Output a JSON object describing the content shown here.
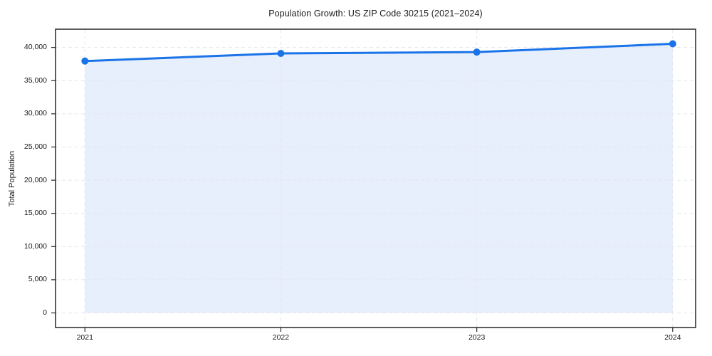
{
  "chart_data": {
    "type": "area",
    "title": "Population Growth: US ZIP Code 30215 (2021–2024)",
    "xlabel": "",
    "ylabel": "Total Population",
    "x": [
      2021,
      2022,
      2023,
      2024
    ],
    "series": [
      {
        "name": "Total Population",
        "values": [
          37950,
          39100,
          39300,
          40550
        ]
      }
    ],
    "xlim": [
      2020.85,
      2024.117
    ],
    "ylim": [
      -2200,
      42750
    ],
    "fill_baseline": 0,
    "yticks": [
      0,
      5000,
      10000,
      15000,
      20000,
      25000,
      30000,
      35000,
      40000
    ],
    "ytick_labels": [
      "0",
      "5,000",
      "10,000",
      "15,000",
      "20,000",
      "25,000",
      "30,000",
      "35,000",
      "40,000"
    ],
    "xticks": [
      2021,
      2022,
      2023,
      2024
    ],
    "xtick_labels": [
      "2021",
      "2022",
      "2023",
      "2024"
    ],
    "grid": true,
    "grid_style": "dashed",
    "legend": false,
    "colors": {
      "line": "#1a73e8",
      "marker": "#1a73e8",
      "fill": "#e8effc",
      "grid": "#e3e6eb",
      "axis": "#262626",
      "text": "#1a1a1a",
      "background": "#ffffff"
    }
  }
}
